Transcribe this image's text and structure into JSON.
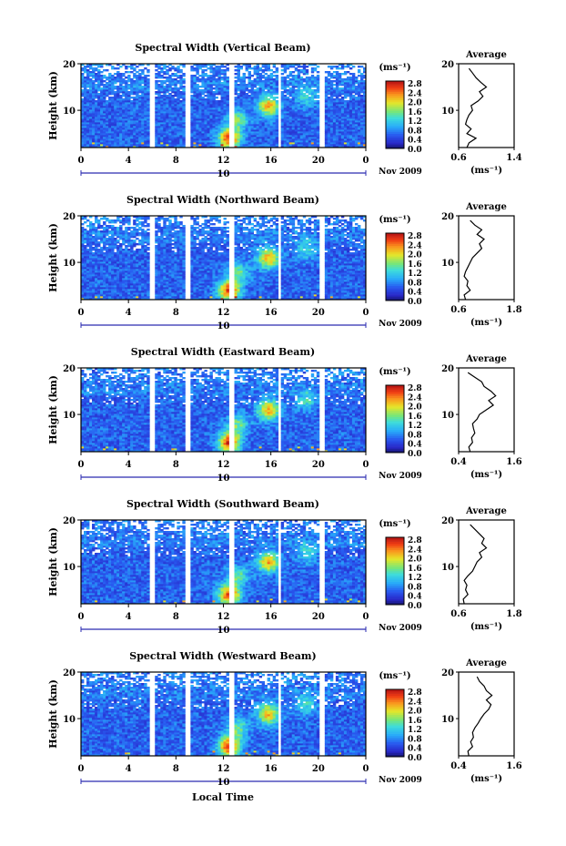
{
  "figure": {
    "bottom_xlabel": "Local Time"
  },
  "chart_data": [
    {
      "type": "heatmap",
      "title": "Spectral Width (Vertical Beam)",
      "ylabel": "Height (km)",
      "ylim": [
        2,
        20
      ],
      "yticks": [
        "10",
        "20"
      ],
      "xticks": [
        "0",
        "4",
        "8",
        "12",
        "16",
        "20",
        "0"
      ],
      "xlim": [
        0,
        24
      ],
      "date_marker": "10",
      "date_label": "Nov 2009",
      "colorbar": {
        "unit": "(ms⁻¹)",
        "ticks": [
          "2.8",
          "2.4",
          "2.0",
          "1.6",
          "1.2",
          "0.8",
          "0.4",
          "0.0"
        ]
      },
      "data_gaps_hours": [
        6,
        9,
        12.7,
        16.7,
        20.3
      ],
      "average_profile": {
        "title": "Average",
        "xlabel": "(ms⁻¹)",
        "xticks": [
          "0.6",
          "1.4"
        ],
        "xlim": [
          0.6,
          1.4
        ],
        "ylim": [
          2,
          20
        ],
        "yticks": [
          "10",
          "20"
        ],
        "heights": [
          2,
          3,
          4,
          5,
          6,
          7,
          8,
          9,
          10,
          11,
          12,
          13,
          14,
          15,
          16,
          17,
          18,
          19
        ],
        "values": [
          0.72,
          0.75,
          0.85,
          0.72,
          0.78,
          0.7,
          0.72,
          0.75,
          0.8,
          0.78,
          0.88,
          0.95,
          0.9,
          1.0,
          0.92,
          0.85,
          0.8,
          0.75
        ]
      }
    },
    {
      "type": "heatmap",
      "title": "Spectral Width (Northward Beam)",
      "ylabel": "Height (km)",
      "ylim": [
        2,
        20
      ],
      "yticks": [
        "10",
        "20"
      ],
      "xticks": [
        "0",
        "4",
        "8",
        "12",
        "16",
        "20",
        "0"
      ],
      "xlim": [
        0,
        24
      ],
      "date_marker": "10",
      "date_label": "Nov 2009",
      "colorbar": {
        "unit": "(ms⁻¹)",
        "ticks": [
          "2.8",
          "2.4",
          "2.0",
          "1.6",
          "1.2",
          "0.8",
          "0.4",
          "0.0"
        ]
      },
      "data_gaps_hours": [
        6,
        9,
        12.7,
        16.7,
        20.3
      ],
      "average_profile": {
        "title": "Average",
        "xlabel": "(ms⁻¹)",
        "xticks": [
          "0.6",
          "1.8"
        ],
        "xlim": [
          0.6,
          1.8
        ],
        "ylim": [
          2,
          20
        ],
        "yticks": [
          "10",
          "20"
        ],
        "heights": [
          2,
          3,
          4,
          5,
          6,
          7,
          8,
          9,
          10,
          11,
          12,
          13,
          14,
          15,
          16,
          17,
          18,
          19
        ],
        "values": [
          0.75,
          0.72,
          0.85,
          0.78,
          0.8,
          0.72,
          0.75,
          0.8,
          0.85,
          0.9,
          1.0,
          1.1,
          1.05,
          1.15,
          1.0,
          1.1,
          0.95,
          0.85
        ]
      }
    },
    {
      "type": "heatmap",
      "title": "Spectral Width (Eastward Beam)",
      "ylabel": "Height (km)",
      "ylim": [
        2,
        20
      ],
      "yticks": [
        "10",
        "20"
      ],
      "xticks": [
        "0",
        "4",
        "8",
        "12",
        "16",
        "20",
        "0"
      ],
      "xlim": [
        0,
        24
      ],
      "date_marker": "10",
      "date_label": "Nov 2009",
      "colorbar": {
        "unit": "(ms⁻¹)",
        "ticks": [
          "2.8",
          "2.4",
          "2.0",
          "1.6",
          "1.2",
          "0.8",
          "0.4",
          "0.0"
        ]
      },
      "data_gaps_hours": [
        6,
        9,
        12.7,
        16.7,
        20.3
      ],
      "average_profile": {
        "title": "Average",
        "xlabel": "(ms⁻¹)",
        "xticks": [
          "0.4",
          "1.6"
        ],
        "xlim": [
          0.4,
          1.6
        ],
        "ylim": [
          2,
          20
        ],
        "yticks": [
          "10",
          "20"
        ],
        "heights": [
          2,
          3,
          4,
          5,
          6,
          7,
          8,
          9,
          10,
          11,
          12,
          13,
          14,
          15,
          16,
          17,
          18,
          19
        ],
        "values": [
          0.65,
          0.62,
          0.7,
          0.68,
          0.75,
          0.72,
          0.7,
          0.8,
          0.85,
          1.0,
          1.15,
          1.05,
          1.2,
          1.1,
          0.95,
          0.9,
          0.75,
          0.6
        ]
      }
    },
    {
      "type": "heatmap",
      "title": "Spectral Width (Southward Beam)",
      "ylabel": "Height (km)",
      "ylim": [
        2,
        20
      ],
      "yticks": [
        "10",
        "20"
      ],
      "xticks": [
        "0",
        "4",
        "8",
        "12",
        "16",
        "20",
        "0"
      ],
      "xlim": [
        0,
        24
      ],
      "date_marker": "10",
      "date_label": "Nov 2009",
      "colorbar": {
        "unit": "(ms⁻¹)",
        "ticks": [
          "2.8",
          "2.4",
          "2.0",
          "1.6",
          "1.2",
          "0.8",
          "0.4",
          "0.0"
        ]
      },
      "data_gaps_hours": [
        6,
        9,
        12.7,
        16.7,
        20.3
      ],
      "average_profile": {
        "title": "Average",
        "xlabel": "(ms⁻¹)",
        "xticks": [
          "0.6",
          "1.8"
        ],
        "xlim": [
          0.6,
          1.8
        ],
        "ylim": [
          2,
          20
        ],
        "yticks": [
          "10",
          "20"
        ],
        "heights": [
          2,
          3,
          4,
          5,
          6,
          7,
          8,
          9,
          10,
          11,
          12,
          13,
          14,
          15,
          16,
          17,
          18,
          19
        ],
        "values": [
          0.72,
          0.7,
          0.8,
          0.75,
          0.78,
          0.72,
          0.8,
          0.9,
          0.95,
          1.0,
          1.1,
          1.05,
          1.2,
          1.1,
          1.15,
          1.05,
          0.95,
          0.85
        ]
      }
    },
    {
      "type": "heatmap",
      "title": "Spectral Width (Westward Beam)",
      "ylabel": "Height (km)",
      "ylim": [
        2,
        20
      ],
      "yticks": [
        "10",
        "20"
      ],
      "xticks": [
        "0",
        "4",
        "8",
        "12",
        "16",
        "20",
        "0"
      ],
      "xlim": [
        0,
        24
      ],
      "date_marker": "10",
      "date_label": "Nov 2009",
      "colorbar": {
        "unit": "(ms⁻¹)",
        "ticks": [
          "2.8",
          "2.4",
          "2.0",
          "1.6",
          "1.2",
          "0.8",
          "0.4",
          "0.0"
        ]
      },
      "data_gaps_hours": [
        6,
        9,
        12.7,
        16.7,
        20.3
      ],
      "average_profile": {
        "title": "Average",
        "xlabel": "(ms⁻¹)",
        "xticks": [
          "0.4",
          "1.6"
        ],
        "xlim": [
          0.4,
          1.6
        ],
        "ylim": [
          2,
          20
        ],
        "yticks": [
          "10",
          "20"
        ],
        "heights": [
          2,
          3,
          4,
          5,
          6,
          7,
          8,
          9,
          10,
          11,
          12,
          13,
          14,
          15,
          16,
          17,
          18,
          19
        ],
        "values": [
          0.62,
          0.6,
          0.7,
          0.66,
          0.72,
          0.7,
          0.75,
          0.82,
          0.88,
          0.95,
          1.05,
          1.1,
          1.0,
          1.12,
          1.0,
          0.95,
          0.85,
          0.8
        ]
      }
    }
  ]
}
